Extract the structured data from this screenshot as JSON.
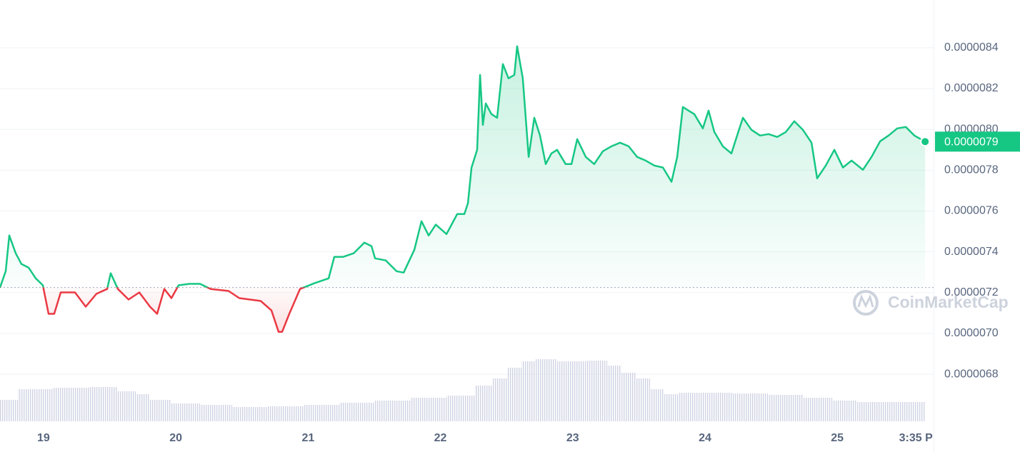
{
  "chart_data": {
    "type": "line",
    "ylim": [
      6.545e-06,
      8.634e-06
    ],
    "yticks": [
      {
        "value": 8.4e-06,
        "label": "0.0000084"
      },
      {
        "value": 8.2e-06,
        "label": "0.0000082"
      },
      {
        "value": 8e-06,
        "label": "0.0000080"
      },
      {
        "value": 7.8e-06,
        "label": "0.0000078"
      },
      {
        "value": 7.6e-06,
        "label": "0.0000076"
      },
      {
        "value": 7.4e-06,
        "label": "0.0000074"
      },
      {
        "value": 7.2e-06,
        "label": "0.0000072"
      },
      {
        "value": 7e-06,
        "label": "0.0000070"
      },
      {
        "value": 6.8e-06,
        "label": "0.0000068"
      }
    ],
    "xlim": [
      18.671,
      25.728
    ],
    "xticks": [
      19,
      20,
      21,
      22,
      23,
      24,
      25,
      {
        "value": 25.594,
        "label": "3:35 P"
      }
    ],
    "grid": true,
    "baseline": 7.225e-06,
    "up_color": "#16c784",
    "down_color": "#ea3943",
    "y2lim": [
      0,
      170
    ],
    "price_tag": {
      "value": 7.94e-06,
      "label": "0.0000079"
    },
    "watermark": "CoinMarketCap",
    "series": [
      {
        "x": [
          18.671,
          18.714,
          18.741,
          18.79,
          18.833,
          18.887,
          18.941,
          18.995,
          19.038,
          19.081,
          19.13,
          19.184,
          19.238,
          19.319,
          19.4,
          19.481,
          19.508,
          19.562,
          19.643,
          19.724,
          19.805,
          19.859,
          19.913,
          19.967,
          20.021,
          20.102,
          20.183,
          20.264,
          20.399,
          20.48,
          20.561,
          20.642,
          20.723,
          20.777,
          20.804,
          20.858,
          20.939,
          21.047,
          21.155,
          21.198,
          21.263,
          21.344,
          21.425,
          21.479,
          21.506,
          21.587,
          21.668,
          21.722,
          21.803,
          21.857,
          21.911,
          21.965,
          22.046,
          22.127,
          22.181,
          22.208,
          22.235,
          22.278,
          22.3,
          22.321,
          22.343,
          22.386,
          22.429,
          22.472,
          22.515,
          22.559,
          22.58,
          22.623,
          22.667,
          22.71,
          22.753,
          22.796,
          22.839,
          22.882,
          22.947,
          22.991,
          23.034,
          23.099,
          23.163,
          23.228,
          23.293,
          23.358,
          23.423,
          23.487,
          23.552,
          23.617,
          23.682,
          23.747,
          23.79,
          23.833,
          23.876,
          23.919,
          23.984,
          24.027,
          24.071,
          24.135,
          24.2,
          24.243,
          24.287,
          24.351,
          24.416,
          24.481,
          24.546,
          24.611,
          24.675,
          24.74,
          24.805,
          24.848,
          24.913,
          24.978,
          25.043,
          25.108,
          25.194,
          25.259,
          25.324,
          25.388,
          25.453,
          25.518,
          25.583,
          25.664
        ],
        "values": [
          7.225e-06,
          7.305e-06,
          7.48e-06,
          7.393e-06,
          7.34e-06,
          7.323e-06,
          7.27e-06,
          7.236e-06,
          7.096e-06,
          7.096e-06,
          7.201e-06,
          7.201e-06,
          7.201e-06,
          7.131e-06,
          7.194e-06,
          7.218e-06,
          7.295e-06,
          7.218e-06,
          7.166e-06,
          7.201e-06,
          7.131e-06,
          7.096e-06,
          7.218e-06,
          7.173e-06,
          7.236e-06,
          7.243e-06,
          7.243e-06,
          7.218e-06,
          7.208e-06,
          7.173e-06,
          7.166e-06,
          7.159e-06,
          7.113e-06,
          7.008e-06,
          7.008e-06,
          7.096e-06,
          7.218e-06,
          7.246e-06,
          7.27e-06,
          7.375e-06,
          7.375e-06,
          7.393e-06,
          7.445e-06,
          7.428e-06,
          7.368e-06,
          7.358e-06,
          7.305e-06,
          7.298e-06,
          7.41e-06,
          7.55e-06,
          7.48e-06,
          7.533e-06,
          7.487e-06,
          7.585e-06,
          7.585e-06,
          7.638e-06,
          7.812e-06,
          7.9e-06,
          8.267e-06,
          8.022e-06,
          8.127e-06,
          8.075e-06,
          8.057e-06,
          8.32e-06,
          8.25e-06,
          8.267e-06,
          8.407e-06,
          8.25e-06,
          7.865e-06,
          8.057e-06,
          7.97e-06,
          7.83e-06,
          7.882e-06,
          7.9e-06,
          7.83e-06,
          7.83e-06,
          7.952e-06,
          7.865e-06,
          7.83e-06,
          7.893e-06,
          7.917e-06,
          7.935e-06,
          7.917e-06,
          7.865e-06,
          7.847e-06,
          7.823e-06,
          7.813e-06,
          7.743e-06,
          7.865e-06,
          8.11e-06,
          8.092e-06,
          8.075e-06,
          8.005e-06,
          8.092e-06,
          7.987e-06,
          7.917e-06,
          7.882e-06,
          7.97e-06,
          8.057e-06,
          7.998e-06,
          7.97e-06,
          7.977e-06,
          7.963e-06,
          7.987e-06,
          8.04e-06,
          7.998e-06,
          7.935e-06,
          7.76e-06,
          7.823e-06,
          7.9e-06,
          7.813e-06,
          7.847e-06,
          7.802e-06,
          7.865e-06,
          7.942e-06,
          7.97e-06,
          8.005e-06,
          8.012e-06,
          7.97e-06,
          7.94e-06
        ]
      },
      {
        "axis": "y2",
        "color": "#cfd3e3",
        "x": [
          18.671,
          18.941,
          19.211,
          19.481,
          19.643,
          19.751,
          19.859,
          20.075,
          20.291,
          20.561,
          20.831,
          21.101,
          21.371,
          21.641,
          21.911,
          22.181,
          22.343,
          22.451,
          22.559,
          22.667,
          22.775,
          22.991,
          23.207,
          23.315,
          23.423,
          23.531,
          23.639,
          23.747,
          23.855,
          24.071,
          24.341,
          24.611,
          24.881,
          25.043,
          25.259,
          25.475,
          25.664
        ],
        "values": [
          30,
          45,
          47,
          48,
          42,
          38,
          30,
          25,
          23,
          20,
          21,
          23,
          26,
          29,
          33,
          36,
          50,
          60,
          75,
          84,
          87,
          84,
          85,
          78,
          68,
          60,
          45,
          38,
          40,
          40,
          39,
          37,
          33,
          29,
          27,
          27,
          27
        ]
      }
    ]
  }
}
